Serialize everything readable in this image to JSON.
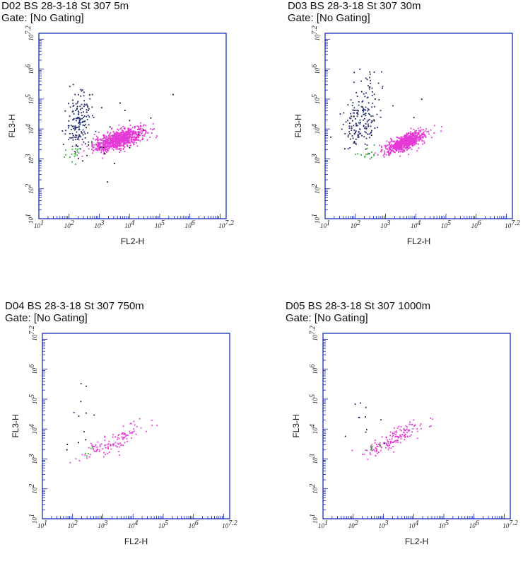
{
  "panels": [
    {
      "title": "D02 BS 28-3-18 St 307 5m",
      "gate": "Gate: [No Gating]"
    },
    {
      "title": "D03 BS 28-3-18 St 307 30m",
      "gate": "Gate: [No Gating]"
    },
    {
      "title": "D04 BS 28-3-18 St 307 750m",
      "gate": "Gate: [No Gating]"
    },
    {
      "title": "D05 BS 28-3-18 St 307 1000m",
      "gate": "Gate: [No Gating]"
    }
  ],
  "colors": {
    "axis": "#0a1fb0",
    "navy": "#1a2a6e",
    "magenta": "#e639d6",
    "green": "#2fb12f",
    "black": "#111111"
  },
  "chart_data": [
    {
      "type": "scatter",
      "title": "D02 BS 28-3-18 St 307 5m",
      "xlabel": "FL2-H",
      "ylabel": "FL3-H",
      "xscale": "log",
      "yscale": "log",
      "xlim": [
        1,
        7.2
      ],
      "ylim": [
        1,
        7.2
      ],
      "xtick_labels": [
        "10^1",
        "10^2",
        "10^3",
        "10^4",
        "10^5",
        "10^6",
        "10^7.2"
      ],
      "ytick_labels": [
        "10^1",
        "10^2",
        "10^3",
        "10^4",
        "10^5",
        "10^6",
        "10^7.2"
      ],
      "series": [
        {
          "color": "magenta",
          "clusters": [
            {
              "cx": 3.65,
              "cy": 3.65,
              "sx": 0.42,
              "sy": 0.2,
              "rho": 0.65,
              "n": 900
            }
          ]
        },
        {
          "color": "navy",
          "clusters": [
            {
              "cx": 2.3,
              "cy": 3.9,
              "sx": 0.22,
              "sy": 0.3,
              "rho": 0.0,
              "n": 90
            },
            {
              "cx": 2.4,
              "cy": 4.7,
              "sx": 0.22,
              "sy": 0.3,
              "rho": 0.0,
              "n": 70
            }
          ]
        },
        {
          "color": "green",
          "clusters": [
            {
              "cx": 2.1,
              "cy": 3.2,
              "sx": 0.15,
              "sy": 0.15,
              "rho": 0.2,
              "n": 18
            }
          ]
        },
        {
          "color": "black",
          "clusters": [
            {
              "cx": 3.0,
              "cy": 4.2,
              "sx": 1.0,
              "sy": 0.9,
              "rho": 0.3,
              "n": 25
            }
          ]
        }
      ]
    },
    {
      "type": "scatter",
      "title": "D03 BS 28-3-18 St 307 30m",
      "xlabel": "FL2-H",
      "ylabel": "FL3-H",
      "xscale": "log",
      "yscale": "log",
      "xlim": [
        1,
        7.2
      ],
      "ylim": [
        1,
        7.2
      ],
      "xtick_labels": [
        "10^1",
        "10^2",
        "10^3",
        "10^4",
        "10^5",
        "10^6",
        "10^7.2"
      ],
      "ytick_labels": [
        "10^1",
        "10^2",
        "10^3",
        "10^4",
        "10^5",
        "10^6",
        "10^7.2"
      ],
      "series": [
        {
          "color": "magenta",
          "clusters": [
            {
              "cx": 3.65,
              "cy": 3.55,
              "sx": 0.32,
              "sy": 0.17,
              "rho": 0.7,
              "n": 800
            }
          ]
        },
        {
          "color": "navy",
          "clusters": [
            {
              "cx": 2.2,
              "cy": 4.3,
              "sx": 0.28,
              "sy": 0.4,
              "rho": 0.0,
              "n": 150
            },
            {
              "cx": 2.5,
              "cy": 5.5,
              "sx": 0.3,
              "sy": 0.3,
              "rho": 0.0,
              "n": 25
            }
          ]
        },
        {
          "color": "green",
          "clusters": [
            {
              "cx": 2.4,
              "cy": 3.2,
              "sx": 0.18,
              "sy": 0.15,
              "rho": 0.2,
              "n": 15
            }
          ]
        },
        {
          "color": "black",
          "clusters": [
            {
              "cx": 2.6,
              "cy": 4.2,
              "sx": 0.8,
              "sy": 0.7,
              "rho": 0.2,
              "n": 15
            }
          ]
        }
      ]
    },
    {
      "type": "scatter",
      "title": "D04 BS 28-3-18 St 307 750m",
      "xlabel": "FL2-H",
      "ylabel": "FL3-H",
      "xscale": "log",
      "yscale": "log",
      "xlim": [
        1,
        7.2
      ],
      "ylim": [
        1,
        7.2
      ],
      "xtick_labels": [
        "10^1",
        "10^2",
        "10^3",
        "10^4",
        "10^5",
        "10^6",
        "10^7.2"
      ],
      "ytick_labels": [
        "10^1",
        "10^2",
        "10^3",
        "10^4",
        "10^5",
        "10^6",
        "10^7.2"
      ],
      "series": [
        {
          "color": "magenta",
          "clusters": [
            {
              "cx": 3.4,
              "cy": 3.6,
              "sx": 0.55,
              "sy": 0.32,
              "rho": 0.85,
              "n": 120
            }
          ]
        },
        {
          "color": "navy",
          "clusters": [
            {
              "cx": 2.2,
              "cy": 4.5,
              "sx": 0.3,
              "sy": 0.5,
              "rho": 0.0,
              "n": 8
            }
          ]
        },
        {
          "color": "green",
          "clusters": [
            {
              "cx": 2.5,
              "cy": 3.3,
              "sx": 0.15,
              "sy": 0.1,
              "rho": 0.0,
              "n": 5
            }
          ]
        },
        {
          "color": "black",
          "clusters": [
            {
              "cx": 2.0,
              "cy": 3.6,
              "sx": 0.3,
              "sy": 0.3,
              "rho": 0.0,
              "n": 4
            }
          ]
        }
      ]
    },
    {
      "type": "scatter",
      "title": "D05 BS 28-3-18 St 307 1000m",
      "xlabel": "FL2-H",
      "ylabel": "FL3-H",
      "xscale": "log",
      "yscale": "log",
      "xlim": [
        1,
        7.2
      ],
      "ylim": [
        1,
        7.2
      ],
      "xtick_labels": [
        "10^1",
        "10^2",
        "10^3",
        "10^4",
        "10^5",
        "10^6",
        "10^7.2"
      ],
      "ytick_labels": [
        "10^1",
        "10^2",
        "10^3",
        "10^4",
        "10^5",
        "10^6",
        "10^7.2"
      ],
      "series": [
        {
          "color": "magenta",
          "clusters": [
            {
              "cx": 3.4,
              "cy": 3.7,
              "sx": 0.5,
              "sy": 0.32,
              "rho": 0.85,
              "n": 150
            }
          ]
        },
        {
          "color": "navy",
          "clusters": [
            {
              "cx": 2.3,
              "cy": 4.5,
              "sx": 0.35,
              "sy": 0.45,
              "rho": 0.0,
              "n": 8
            }
          ]
        },
        {
          "color": "green",
          "clusters": [
            {
              "cx": 2.6,
              "cy": 3.3,
              "sx": 0.15,
              "sy": 0.1,
              "rho": 0.0,
              "n": 6
            }
          ]
        },
        {
          "color": "black",
          "clusters": [
            {
              "cx": 2.6,
              "cy": 4.2,
              "sx": 0.6,
              "sy": 0.6,
              "rho": 0.0,
              "n": 4
            }
          ]
        }
      ]
    }
  ]
}
